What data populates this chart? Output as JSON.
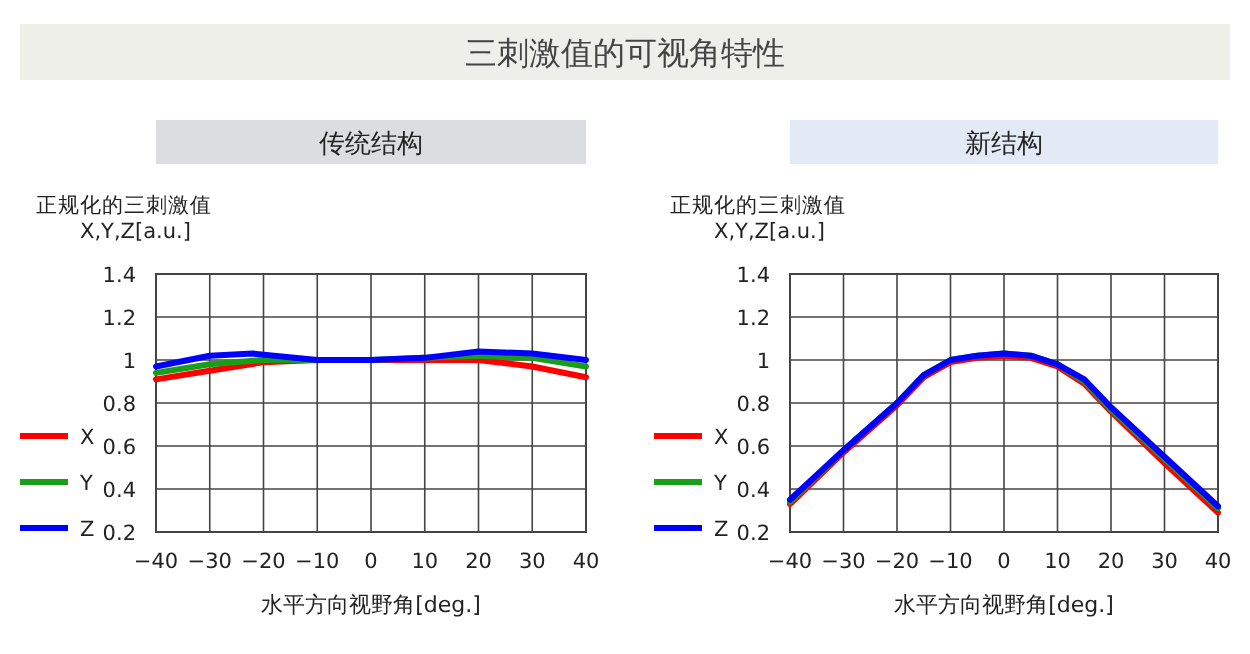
{
  "chart_data": [
    {
      "type": "other",
      "title": "三刺激值的可视角特性"
    },
    {
      "type": "line",
      "title": "传统结构",
      "ylabel": "正规化的三刺激值\nX,Y,Z[a.u.]",
      "xlabel": "水平方向视野角[deg.]",
      "xlim": [
        -40,
        40
      ],
      "ylim": [
        0.2,
        1.4
      ],
      "xticks": [
        -40,
        -30,
        -20,
        -10,
        0,
        10,
        20,
        30,
        40
      ],
      "yticks": [
        0.2,
        0.4,
        0.6,
        0.8,
        1,
        1.2,
        1.4
      ],
      "grid": true,
      "legend": "left",
      "line_style": "solid",
      "series": [
        {
          "name": "X",
          "color": "#ff0000",
          "x": [
            -40,
            -30,
            -20,
            -10,
            0,
            10,
            20,
            30,
            40
          ],
          "values": [
            0.91,
            0.95,
            0.99,
            1.0,
            1.0,
            1.0,
            1.0,
            0.97,
            0.92
          ]
        },
        {
          "name": "Y",
          "color": "#1a9e1a",
          "x": [
            -40,
            -30,
            -20,
            -10,
            0,
            10,
            20,
            30,
            40
          ],
          "values": [
            0.94,
            0.98,
            1.0,
            1.0,
            1.0,
            1.01,
            1.02,
            1.01,
            0.97
          ]
        },
        {
          "name": "Z",
          "color": "#0000ff",
          "x": [
            -40,
            -30,
            -22,
            -10,
            0,
            10,
            20,
            30,
            40
          ],
          "values": [
            0.97,
            1.02,
            1.03,
            1.0,
            1.0,
            1.01,
            1.04,
            1.03,
            1.0
          ]
        }
      ]
    },
    {
      "type": "line",
      "title": "新结构",
      "ylabel": "正规化的三刺激值\nX,Y,Z[a.u.]",
      "xlabel": "水平方向视野角[deg.]",
      "xlim": [
        -40,
        40
      ],
      "ylim": [
        0.2,
        1.4
      ],
      "xticks": [
        -40,
        -30,
        -20,
        -10,
        0,
        10,
        20,
        30,
        40
      ],
      "yticks": [
        0.2,
        0.4,
        0.6,
        0.8,
        1,
        1.2,
        1.4
      ],
      "grid": true,
      "legend": "left",
      "line_style": "solid",
      "series": [
        {
          "name": "X",
          "color": "#ff0000",
          "x": [
            -40,
            -30,
            -20,
            -15,
            -10,
            -5,
            0,
            5,
            10,
            15,
            20,
            30,
            40
          ],
          "values": [
            0.33,
            0.57,
            0.79,
            0.92,
            0.99,
            1.01,
            1.02,
            1.01,
            0.97,
            0.89,
            0.76,
            0.52,
            0.29
          ]
        },
        {
          "name": "Y",
          "color": "#1a9e1a",
          "x": [
            -40,
            -30,
            -20,
            -15,
            -10,
            -5,
            0,
            5,
            10,
            15,
            20,
            30,
            40
          ],
          "values": [
            0.34,
            0.58,
            0.8,
            0.93,
            1.0,
            1.02,
            1.03,
            1.02,
            0.98,
            0.9,
            0.77,
            0.54,
            0.31
          ]
        },
        {
          "name": "Z",
          "color": "#0000ff",
          "x": [
            -40,
            -30,
            -20,
            -15,
            -10,
            -5,
            0,
            5,
            10,
            15,
            20,
            30,
            40
          ],
          "values": [
            0.35,
            0.58,
            0.8,
            0.93,
            1.0,
            1.02,
            1.03,
            1.02,
            0.98,
            0.91,
            0.78,
            0.55,
            0.32
          ]
        }
      ]
    }
  ]
}
